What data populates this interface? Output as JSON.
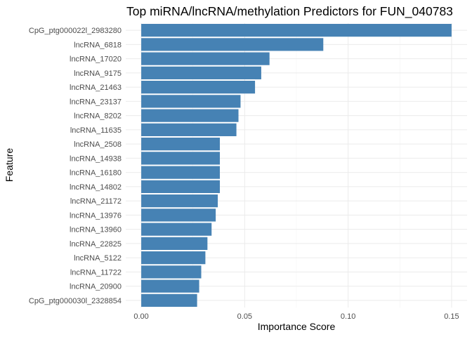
{
  "chart_data": {
    "type": "bar",
    "orientation": "horizontal",
    "title": "Top miRNA/lncRNA/methylation Predictors for FUN_040783",
    "xlabel": "Importance Score",
    "ylabel": "Feature",
    "bar_color": "#4682b4",
    "categories": [
      "CpG_ptg000022l_2983280",
      "lncRNA_6818",
      "lncRNA_17020",
      "lncRNA_9175",
      "lncRNA_21463",
      "lncRNA_23137",
      "lncRNA_8202",
      "lncRNA_11635",
      "lncRNA_2508",
      "lncRNA_14938",
      "lncRNA_16180",
      "lncRNA_14802",
      "lncRNA_21172",
      "lncRNA_13976",
      "lncRNA_13960",
      "lncRNA_22825",
      "lncRNA_5122",
      "lncRNA_11722",
      "lncRNA_20900",
      "CpG_ptg000030l_2328854"
    ],
    "values": [
      0.15,
      0.088,
      0.062,
      0.058,
      0.055,
      0.048,
      0.047,
      0.046,
      0.038,
      0.038,
      0.038,
      0.038,
      0.037,
      0.036,
      0.034,
      0.032,
      0.031,
      0.029,
      0.028,
      0.027
    ],
    "xlim": [
      -0.0075,
      0.1575
    ],
    "xticks": [
      0.0,
      0.05,
      0.1,
      0.15
    ],
    "xtick_labels": [
      "0.00",
      "0.05",
      "0.10",
      "0.15"
    ],
    "grid": true,
    "legend": "none"
  }
}
